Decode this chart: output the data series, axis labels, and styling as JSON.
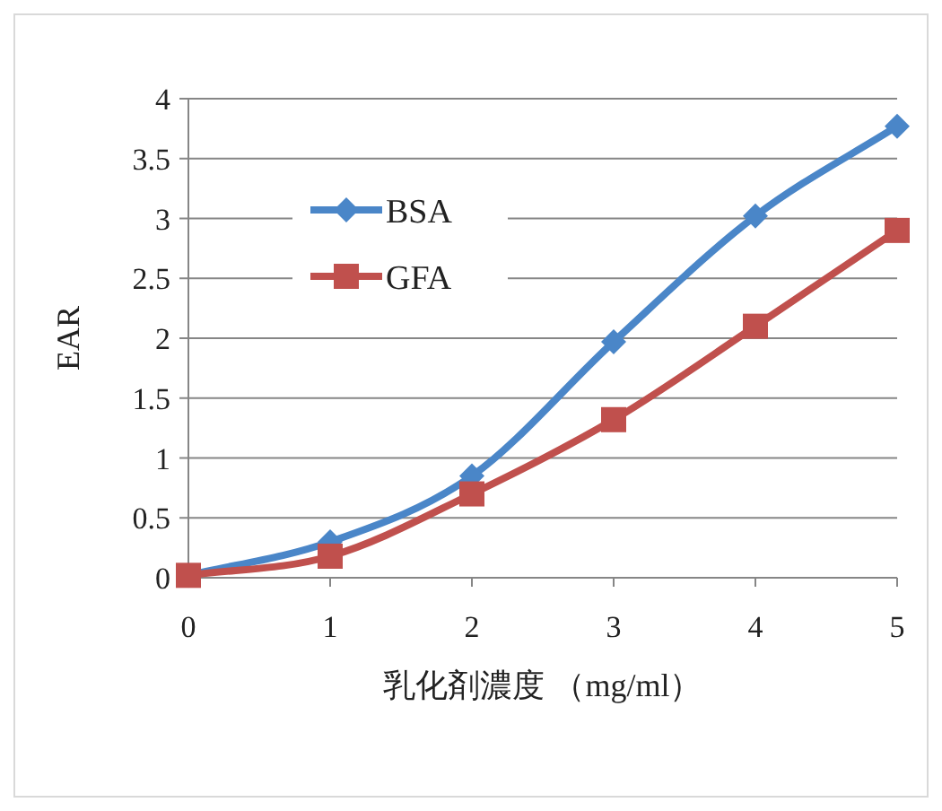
{
  "chart_data": {
    "type": "line",
    "xlabel": "乳化剤濃度 （mg/ml）",
    "ylabel": "EAR",
    "x": [
      0,
      1,
      2,
      3,
      4,
      5
    ],
    "series": [
      {
        "name": "BSA",
        "color": "#4a86c8",
        "marker": "diamond",
        "values": [
          0.02,
          0.3,
          0.85,
          1.97,
          3.02,
          3.77
        ]
      },
      {
        "name": "GFA",
        "color": "#c0504d",
        "marker": "square",
        "values": [
          0.02,
          0.18,
          0.7,
          1.32,
          2.1,
          2.9
        ]
      }
    ],
    "xlim": [
      0,
      5
    ],
    "xticks": [
      0,
      1,
      2,
      3,
      4,
      5
    ],
    "ylim": [
      0,
      4
    ],
    "yticks": [
      0,
      0.5,
      1,
      1.5,
      2,
      2.5,
      3,
      3.5,
      4
    ],
    "grid": "y",
    "legend": "top left",
    "line_style": "solid"
  }
}
